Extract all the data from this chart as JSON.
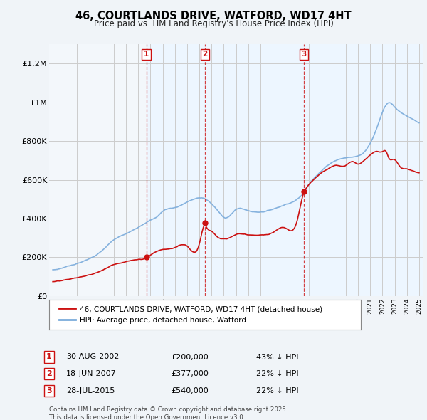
{
  "title": "46, COURTLANDS DRIVE, WATFORD, WD17 4HT",
  "subtitle": "Price paid vs. HM Land Registry's House Price Index (HPI)",
  "background_color": "#f0f4f8",
  "plot_background": "#ffffff",
  "hpi_color": "#7aabdb",
  "price_color": "#cc1111",
  "vline_color": "#cc1111",
  "grid_color": "#cccccc",
  "shade_color": "#ddeeff",
  "purchases": [
    {
      "label": "1",
      "date_x": 2002.66,
      "price": 200000,
      "note": "30-AUG-2002",
      "pct": "43% ↓ HPI"
    },
    {
      "label": "2",
      "date_x": 2007.46,
      "price": 377000,
      "note": "18-JUN-2007",
      "pct": "22% ↓ HPI"
    },
    {
      "label": "3",
      "date_x": 2015.57,
      "price": 540000,
      "note": "28-JUL-2015",
      "pct": "22% ↓ HPI"
    }
  ],
  "legend_entries": [
    "46, COURTLANDS DRIVE, WATFORD, WD17 4HT (detached house)",
    "HPI: Average price, detached house, Watford"
  ],
  "footer": "Contains HM Land Registry data © Crown copyright and database right 2025.\nThis data is licensed under the Open Government Licence v3.0.",
  "ylim": [
    0,
    1300000
  ],
  "yticks": [
    0,
    200000,
    400000,
    600000,
    800000,
    1000000,
    1200000
  ],
  "ytick_labels": [
    "£0",
    "£200K",
    "£400K",
    "£600K",
    "£800K",
    "£1M",
    "£1.2M"
  ],
  "xlim_start": 1994.7,
  "xlim_end": 2025.3
}
